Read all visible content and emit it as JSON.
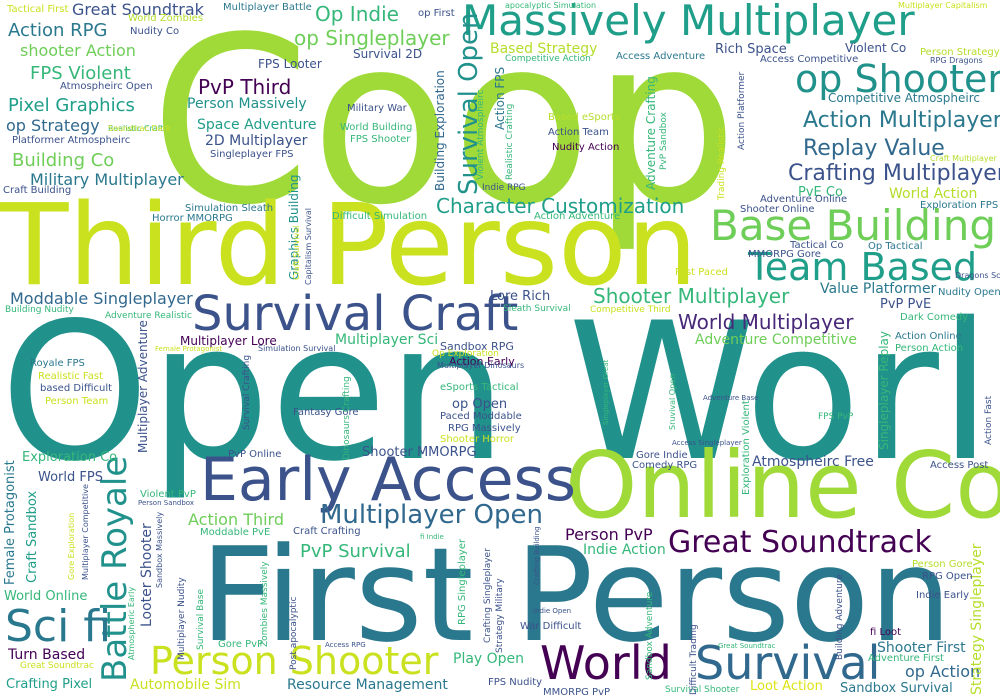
{
  "palette": {
    "deep_purple": "#440154",
    "indigo": "#3b528b",
    "blue": "#31688e",
    "teal": "#21918c",
    "green_teal": "#1f9e89",
    "green": "#35b779",
    "light_green": "#6ece58",
    "yellow_green": "#b5de2b",
    "yellow": "#dde318"
  },
  "words": [
    {
      "text": "Coop",
      "color": "#a0da39"
    },
    {
      "text": "Open World",
      "color": "#21918c"
    },
    {
      "text": "Third Person",
      "color": "#cae11f"
    },
    {
      "text": "First Person",
      "color": "#2a788e"
    },
    {
      "text": "Online Co",
      "color": "#a0da39"
    },
    {
      "text": "Early Access",
      "color": "#3b528b"
    },
    {
      "text": "Massively Multiplayer",
      "color": "#1f9e89"
    },
    {
      "text": "op Shooter",
      "color": "#21918c"
    },
    {
      "text": "Survival Craft",
      "color": "#3b528b"
    },
    {
      "text": "Base Building",
      "color": "#6ece58"
    },
    {
      "text": "Team Based",
      "color": "#1f9e89"
    },
    {
      "text": "World",
      "color": "#440154"
    },
    {
      "text": "Survival",
      "color": "#31688e"
    },
    {
      "text": "Person Shooter",
      "color": "#cae11f"
    },
    {
      "text": "Great Soundtrack",
      "color": "#440154"
    },
    {
      "text": "Multiplayer Open",
      "color": "#31688e"
    },
    {
      "text": "Battle Royale",
      "color": "#21918c"
    },
    {
      "text": "Sci fi",
      "color": "#2a788e"
    },
    {
      "text": "Survival Open",
      "color": "#21918c"
    },
    {
      "text": "Action Multiplayer",
      "color": "#2a788e"
    },
    {
      "text": "Replay Value",
      "color": "#31688e"
    },
    {
      "text": "Crafting Multiplayer",
      "color": "#3b528b"
    },
    {
      "text": "Character Customization",
      "color": "#1f9e89"
    },
    {
      "text": "Shooter Multiplayer",
      "color": "#35b779"
    },
    {
      "text": "World Multiplayer",
      "color": "#482878"
    },
    {
      "text": "Op Indie",
      "color": "#35b779"
    },
    {
      "text": "op Singleplayer",
      "color": "#6ece58"
    },
    {
      "text": "Great Soundtrak",
      "color": "#3b528b"
    },
    {
      "text": "Action RPG",
      "color": "#2a788e"
    },
    {
      "text": "shooter Action",
      "color": "#6ece58"
    },
    {
      "text": "FPS Violent",
      "color": "#35b779"
    },
    {
      "text": "Pixel Graphics",
      "color": "#1f9e89"
    },
    {
      "text": "op Strategy",
      "color": "#31688e"
    },
    {
      "text": "Building Co",
      "color": "#6ece58"
    },
    {
      "text": "Military Multiplayer",
      "color": "#2a788e"
    },
    {
      "text": "PvP Third",
      "color": "#440154"
    },
    {
      "text": "Person Massively",
      "color": "#21918c"
    },
    {
      "text": "Space Adventure",
      "color": "#1f9e89"
    },
    {
      "text": "2D Multiplayer",
      "color": "#3b528b"
    },
    {
      "text": "Moddable Singleplayer",
      "color": "#31688e"
    },
    {
      "text": "Lore Rich",
      "color": "#3b528b"
    },
    {
      "text": "Value Platformer",
      "color": "#2a788e"
    },
    {
      "text": "Adventure Competitive",
      "color": "#6ece58"
    },
    {
      "text": "PvP Survival",
      "color": "#35b779"
    },
    {
      "text": "Action Third",
      "color": "#6ece58"
    },
    {
      "text": "Person PvP",
      "color": "#440154"
    },
    {
      "text": "Indie Action",
      "color": "#35b779"
    },
    {
      "text": "Atmospheirc Free",
      "color": "#3b528b"
    },
    {
      "text": "Play Open",
      "color": "#35b779"
    },
    {
      "text": "Shooter First",
      "color": "#2a788e"
    },
    {
      "text": "op Action",
      "color": "#31688e"
    },
    {
      "text": "Strategy Singleplayer",
      "color": "#b5de2b"
    },
    {
      "text": "Loot Action",
      "color": "#dde318"
    },
    {
      "text": "Sandbox Survival",
      "color": "#2a788e"
    },
    {
      "text": "Resource Management",
      "color": "#2a788e"
    },
    {
      "text": "Automobile Sim",
      "color": "#cae11f"
    },
    {
      "text": "Crafting Pixel",
      "color": "#1f9e89"
    },
    {
      "text": "Turn Based",
      "color": "#440154"
    },
    {
      "text": "World Online",
      "color": "#35b779"
    },
    {
      "text": "Female Protagonist",
      "color": "#2a788e"
    },
    {
      "text": "Craft Sandbox",
      "color": "#1f9e89"
    },
    {
      "text": "Exploration Co",
      "color": "#35b779"
    },
    {
      "text": "World FPS",
      "color": "#3b528b"
    },
    {
      "text": "Shooter MMORPG",
      "color": "#3b528b"
    },
    {
      "text": "op Open",
      "color": "#3b528b"
    },
    {
      "text": "Survival 2D",
      "color": "#3b528b"
    },
    {
      "text": "FPS Looter",
      "color": "#3b528b"
    },
    {
      "text": "Rich Space",
      "color": "#3b528b"
    },
    {
      "text": "Violent Co",
      "color": "#3b528b"
    },
    {
      "text": "Based Strategy",
      "color": "#b5de2b"
    },
    {
      "text": "Competitive Atmospheirc",
      "color": "#2a788e"
    },
    {
      "text": "World Action",
      "color": "#b5de2b"
    },
    {
      "text": "PvE Co",
      "color": "#35b779"
    },
    {
      "text": "Building Exploration",
      "color": "#31688e"
    },
    {
      "text": "Graphics Building",
      "color": "#21918c"
    },
    {
      "text": "Adventure Crafting",
      "color": "#35b779"
    },
    {
      "text": "Action FPS",
      "color": "#2a788e"
    },
    {
      "text": "Looter Shooter",
      "color": "#3b528b"
    },
    {
      "text": "Multiplayer Adventure",
      "color": "#3b528b"
    },
    {
      "text": "Singleplayer Replay",
      "color": "#35b779"
    },
    {
      "text": "PvP PvE",
      "color": "#3b528b"
    },
    {
      "text": "Multiplayer Sci",
      "color": "#35b779"
    },
    {
      "text": "Multiplayer Lore",
      "color": "#440154"
    },
    {
      "text": "Sandbox RPG",
      "color": "#3b528b"
    },
    {
      "text": "Action Early",
      "color": "#440154"
    },
    {
      "text": "Tactical First",
      "color": "#cae11f"
    },
    {
      "text": "World Zombies",
      "color": "#b5de2b"
    },
    {
      "text": "Nudity Co",
      "color": "#3b528b"
    },
    {
      "text": "Multiplayer Battle",
      "color": "#2a788e"
    },
    {
      "text": "op First",
      "color": "#3b528b"
    },
    {
      "text": "Military War",
      "color": "#3b528b"
    },
    {
      "text": "World Building",
      "color": "#35b779"
    },
    {
      "text": "FPS Shooter",
      "color": "#35b779"
    },
    {
      "text": "Based eSports",
      "color": "#b5de2b"
    },
    {
      "text": "Action Team",
      "color": "#3b528b"
    },
    {
      "text": "Nudity Action",
      "color": "#440154"
    },
    {
      "text": "Simulation Sleath",
      "color": "#2a788e"
    },
    {
      "text": "Horror MMORPG",
      "color": "#2a788e"
    },
    {
      "text": "Singleplayer FPS",
      "color": "#3b528b"
    },
    {
      "text": "Platformer Atmospheirc",
      "color": "#3b528b"
    },
    {
      "text": "Craft Building",
      "color": "#3b528b"
    },
    {
      "text": "Atmospheirc Open",
      "color": "#3b528b"
    },
    {
      "text": "Access Adventure",
      "color": "#2a788e"
    },
    {
      "text": "Access Competitive",
      "color": "#3b528b"
    },
    {
      "text": "RPG Dragons",
      "color": "#3b528b"
    },
    {
      "text": "Person Strategy",
      "color": "#b5de2b"
    },
    {
      "text": "Exploration FPS",
      "color": "#2a788e"
    },
    {
      "text": "Tactical Co",
      "color": "#3b528b"
    },
    {
      "text": "Op Tactical",
      "color": "#2a788e"
    },
    {
      "text": "MMORPG Gore",
      "color": "#3b528b"
    },
    {
      "text": "Fast Paced",
      "color": "#cae11f"
    },
    {
      "text": "Shooter Online",
      "color": "#3b528b"
    },
    {
      "text": "Adventure Online",
      "color": "#3b528b"
    },
    {
      "text": "Difficult Simulation",
      "color": "#35b779"
    },
    {
      "text": "Action Adventure",
      "color": "#35b779"
    },
    {
      "text": "Nudity Open",
      "color": "#2a788e"
    },
    {
      "text": "Dark Comedy",
      "color": "#35b779"
    },
    {
      "text": "Action Online",
      "color": "#2a788e"
    },
    {
      "text": "Person Action",
      "color": "#35b779"
    },
    {
      "text": "Access Post",
      "color": "#3b528b"
    },
    {
      "text": "FPS PvP",
      "color": "#35b779"
    },
    {
      "text": "Exploration Violent",
      "color": "#35b779"
    },
    {
      "text": "Comedy RPG",
      "color": "#3b528b"
    },
    {
      "text": "Gore Indie",
      "color": "#3b528b"
    },
    {
      "text": "Royale FPS",
      "color": "#2a788e"
    },
    {
      "text": "Realistic Fast",
      "color": "#cae11f"
    },
    {
      "text": "based Difficult",
      "color": "#3b528b"
    },
    {
      "text": "Person Team",
      "color": "#cae11f"
    },
    {
      "text": "Fantasy Gore",
      "color": "#3b528b"
    },
    {
      "text": "Paced Moddable",
      "color": "#3b528b"
    },
    {
      "text": "RPG Massively",
      "color": "#3b528b"
    },
    {
      "text": "Shooter Horror",
      "color": "#cae11f"
    },
    {
      "text": "eSports Tactical",
      "color": "#35b779"
    },
    {
      "text": "PvP Online",
      "color": "#3b528b"
    },
    {
      "text": "Violent PvP",
      "color": "#35b779"
    },
    {
      "text": "Craft Crafting",
      "color": "#3b528b"
    },
    {
      "text": "Moddable PvE",
      "color": "#35b779"
    },
    {
      "text": "Gore PvP",
      "color": "#35b779"
    },
    {
      "text": "FPS Nudity",
      "color": "#3b528b"
    },
    {
      "text": "MMORPG PvP",
      "color": "#3b528b"
    },
    {
      "text": "War Difficult",
      "color": "#3b528b"
    },
    {
      "text": "RPG Singleplayer",
      "color": "#35b779"
    },
    {
      "text": "Person Gore",
      "color": "#b5de2b"
    },
    {
      "text": "RPG Open",
      "color": "#3b528b"
    },
    {
      "text": "Indie Early",
      "color": "#3b528b"
    },
    {
      "text": "fi Loot",
      "color": "#440154"
    },
    {
      "text": "Adventure First",
      "color": "#35b779"
    },
    {
      "text": "Survival Shooter",
      "color": "#35b779"
    },
    {
      "text": "Great Soundtrac",
      "color": "#cae11f"
    },
    {
      "text": "Realistic Craft",
      "color": "#35b779"
    },
    {
      "text": "Dragons Sci",
      "color": "#3b528b"
    },
    {
      "text": "Simulation Survival",
      "color": "#3b528b"
    },
    {
      "text": "Op Exploration",
      "color": "#cae11f"
    },
    {
      "text": "Multiplayer Dinosaurs",
      "color": "#3b528b"
    },
    {
      "text": "Trading Realistic",
      "color": "#cae11f"
    },
    {
      "text": "Post apocalyptic",
      "color": "#3b528b"
    },
    {
      "text": "Multiplayer Sandbox",
      "color": "#3b528b"
    },
    {
      "text": "Multiplayer Nudity",
      "color": "#35b779"
    },
    {
      "text": "Survival Base",
      "color": "#35b779"
    },
    {
      "text": "Zombies Massively",
      "color": "#3b528b"
    },
    {
      "text": "Crafting Singleplayer",
      "color": "#3b528b"
    },
    {
      "text": "Strategy Military",
      "color": "#35b779"
    },
    {
      "text": "Sandbox Adventure",
      "color": "#3b528b"
    },
    {
      "text": "Difficult Trading",
      "color": "#3b528b"
    },
    {
      "text": "Building Adventure",
      "color": "#35b779"
    },
    {
      "text": "apocalyptic Simulation",
      "color": "#cae11f"
    },
    {
      "text": "Multiplayer Capitalism",
      "color": "#3b528b"
    },
    {
      "text": "Capitalism Survival",
      "color": "#cae11f"
    },
    {
      "text": "Craft Survival",
      "color": "#cae11f"
    },
    {
      "text": "Soundtrac Dark",
      "color": "#35b779"
    },
    {
      "text": "Competitive Action",
      "color": "#35b779"
    },
    {
      "text": "Violent Atmospheirc",
      "color": "#35b779"
    },
    {
      "text": "Realistic Crafting",
      "color": "#35b779"
    },
    {
      "text": "PvP Sandbox",
      "color": "#3b528b"
    },
    {
      "text": "Indie RPG",
      "color": "#3b528b"
    },
    {
      "text": "Action Platformer",
      "color": "#b5de2b"
    },
    {
      "text": "Craft Multiplayer",
      "color": "#35b779"
    },
    {
      "text": "Adventure Realistic",
      "color": "#35b779"
    },
    {
      "text": "Building Nudity",
      "color": "#cae11f"
    },
    {
      "text": "Competitive Third",
      "color": "#35b779"
    },
    {
      "text": "Sleath Survival",
      "color": "#3b528b"
    },
    {
      "text": "Survival Crafting",
      "color": "#35b779"
    },
    {
      "text": "Dinosaurs Crafting",
      "color": "#35b779"
    },
    {
      "text": "Singleplayer Great",
      "color": "#35b779"
    },
    {
      "text": "Sruvival Open",
      "color": "#3b528b"
    },
    {
      "text": "Adventure Base",
      "color": "#3b528b"
    },
    {
      "text": "Access Singleplayer",
      "color": "#3b528b"
    },
    {
      "text": "Action Fast",
      "color": "#cae11f"
    },
    {
      "text": "Female Protagonist",
      "color": "#2a788e"
    },
    {
      "text": "Singleplayer Fantasy",
      "color": "#cae11f"
    },
    {
      "text": "Gore Exploration",
      "color": "#3b528b"
    },
    {
      "text": "Multiplayer Competitive",
      "color": "#35b779"
    },
    {
      "text": "Atmospheric Early",
      "color": "#3b528b"
    },
    {
      "text": "Sandbox Massively",
      "color": "#3b528b"
    },
    {
      "text": "Person Sandbox",
      "color": "#3b528b"
    },
    {
      "text": "Access RPG",
      "color": "#35b779"
    },
    {
      "text": "fi Indie",
      "color": "#3b528b"
    },
    {
      "text": "Crafting Building",
      "color": "#3b528b"
    },
    {
      "text": "Indie Open",
      "color": "#35b779"
    },
    {
      "text": "Great Soundtrac",
      "color": "#cae11f"
    }
  ]
}
